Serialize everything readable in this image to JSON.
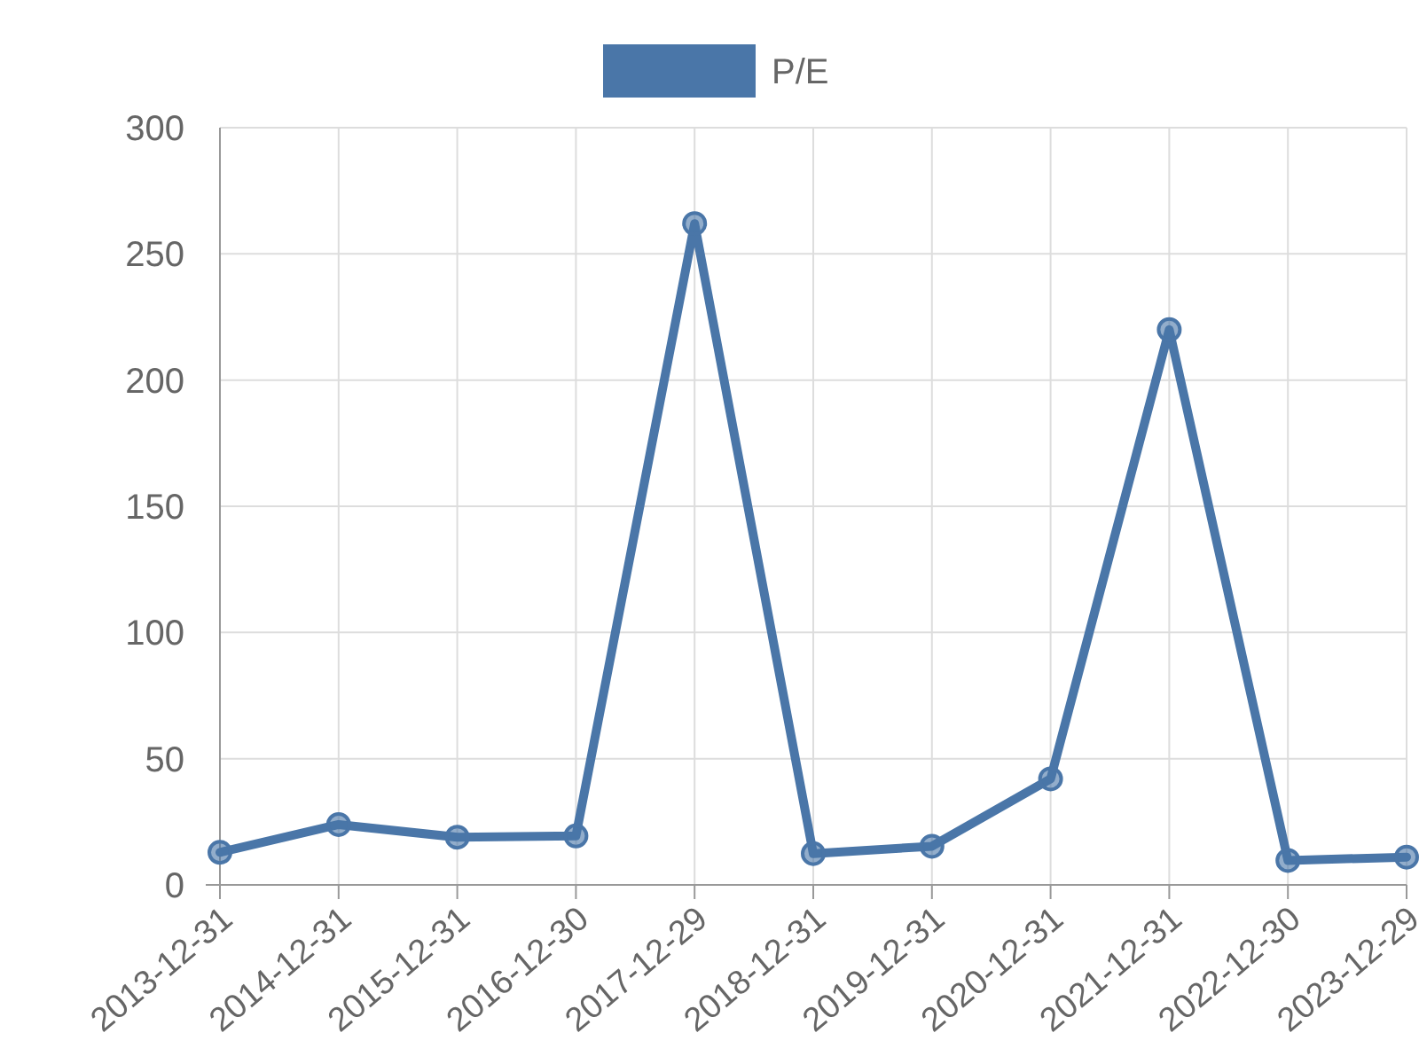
{
  "chart_data": {
    "type": "line",
    "categories": [
      "2013-12-31",
      "2014-12-31",
      "2015-12-31",
      "2016-12-30",
      "2017-12-29",
      "2018-12-31",
      "2019-12-31",
      "2020-12-31",
      "2021-12-31",
      "2022-12-30",
      "2023-12-29"
    ],
    "series": [
      {
        "name": "P/E",
        "color": "#4a76a8",
        "values": [
          12.9,
          23.9,
          18.9,
          19.4,
          262,
          12.4,
          15.3,
          42,
          220,
          9.7,
          11
        ]
      }
    ],
    "ylim": [
      0,
      300
    ],
    "yticks": [
      0,
      50,
      100,
      150,
      200,
      250,
      300
    ],
    "grid": true,
    "legend": "top",
    "marker": "circle",
    "line_style": "solid"
  }
}
